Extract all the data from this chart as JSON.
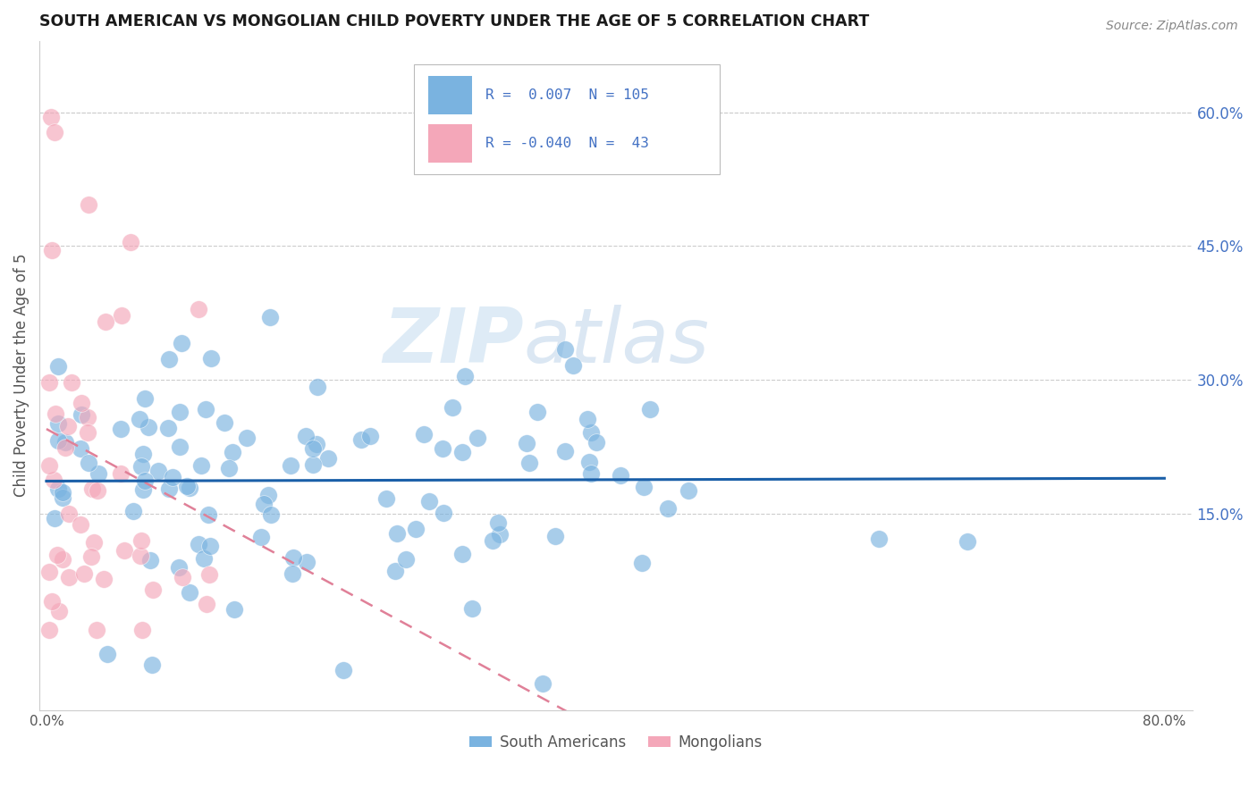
{
  "title": "SOUTH AMERICAN VS MONGOLIAN CHILD POVERTY UNDER THE AGE OF 5 CORRELATION CHART",
  "source": "Source: ZipAtlas.com",
  "ylabel": "Child Poverty Under the Age of 5",
  "xlim": [
    -0.005,
    0.82
  ],
  "ylim": [
    -0.07,
    0.68
  ],
  "ytick_positions": [
    0.15,
    0.3,
    0.45,
    0.6
  ],
  "ytick_labels": [
    "15.0%",
    "30.0%",
    "45.0%",
    "60.0%"
  ],
  "xtick_positions": [
    0.0,
    0.1,
    0.2,
    0.3,
    0.4,
    0.5,
    0.6,
    0.7,
    0.8
  ],
  "xtick_labels": [
    "0.0%",
    "",
    "",
    "",
    "",
    "",
    "",
    "",
    "80.0%"
  ],
  "blue_R": 0.007,
  "blue_N": 105,
  "pink_R": -0.04,
  "pink_N": 43,
  "blue_color": "#7ab3e0",
  "pink_color": "#f4a7b9",
  "blue_line_color": "#1a5fa8",
  "pink_line_color": "#e08098",
  "legend_blue_label": "South Americans",
  "legend_pink_label": "Mongolians",
  "watermark_zip": "ZIP",
  "watermark_atlas": "atlas",
  "grid_color": "#cccccc",
  "title_color": "#1a1a1a",
  "source_color": "#888888",
  "tick_color": "#555555",
  "right_tick_color": "#4472c4",
  "ylabel_color": "#555555"
}
